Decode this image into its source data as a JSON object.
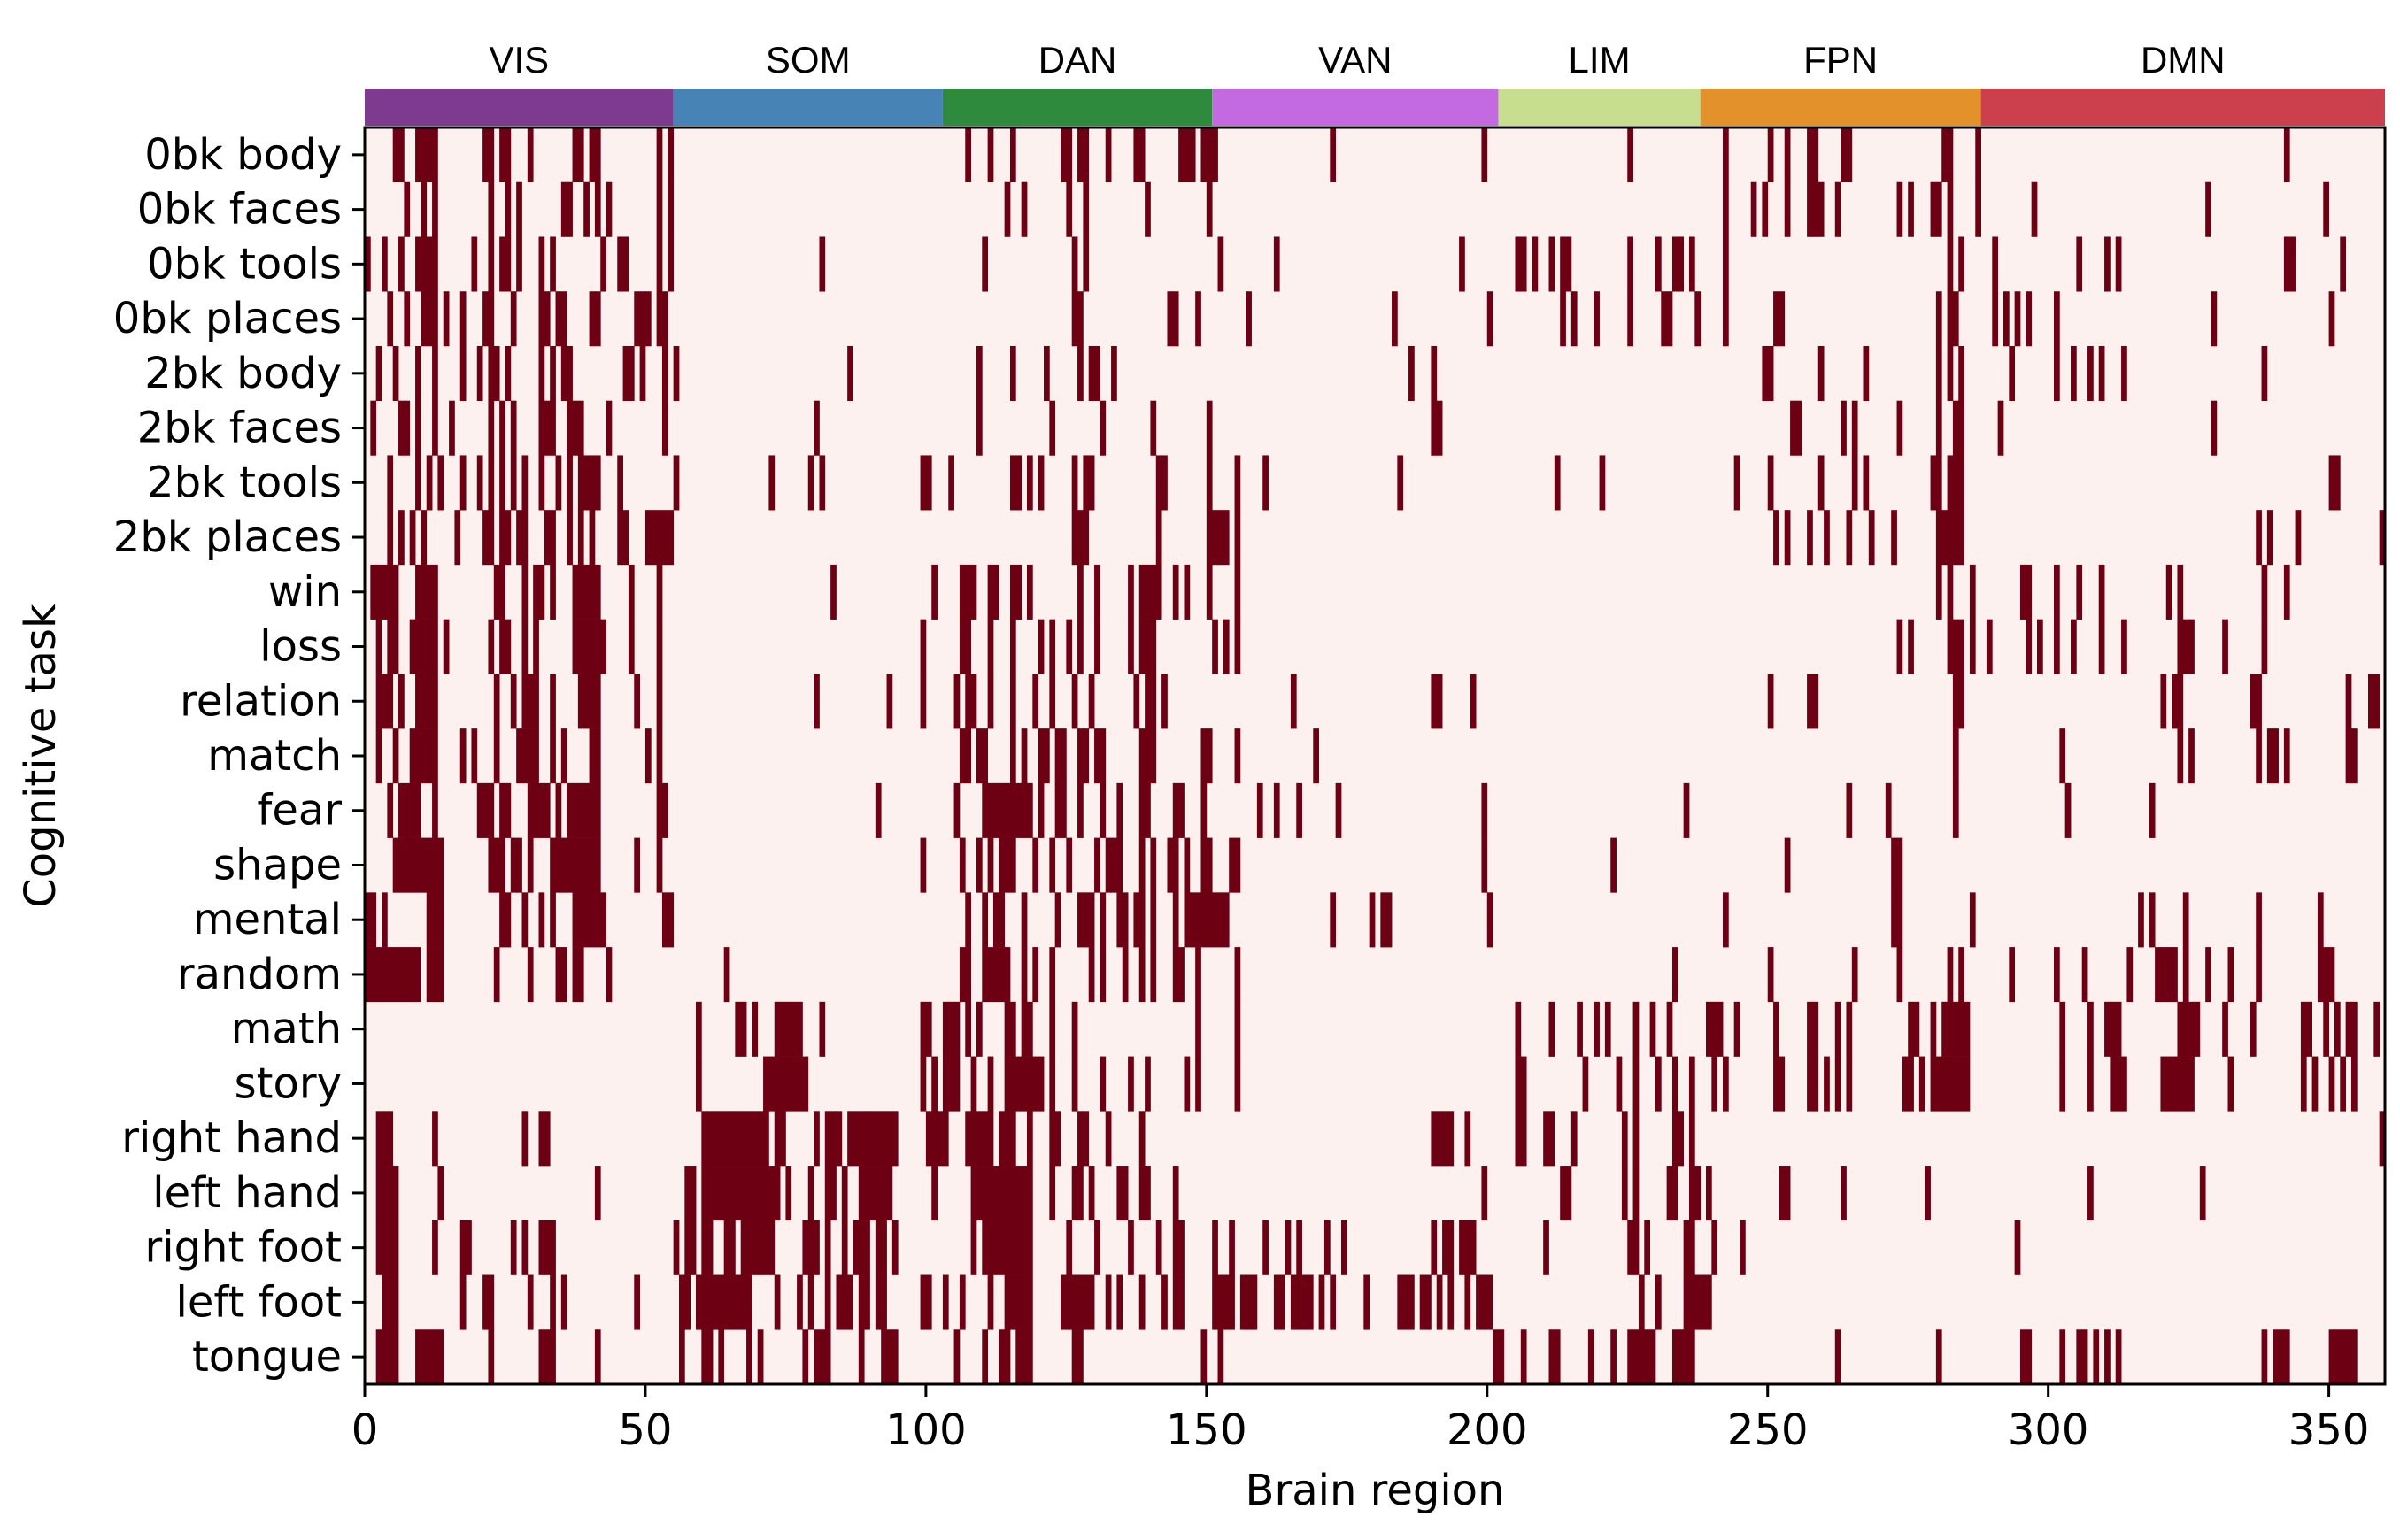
{
  "chart_data": {
    "type": "heatmap",
    "title": "",
    "xlabel": "Brain region",
    "ylabel": "Cognitive task",
    "xlim": [
      0,
      360
    ],
    "xticks": [
      0,
      50,
      100,
      150,
      200,
      250,
      300,
      350
    ],
    "grid": false,
    "legend": "none",
    "colors": {
      "background": "#fcf1ee",
      "active": "#6e0014"
    },
    "tasks": [
      "0bk body",
      "0bk faces",
      "0bk tools",
      "0bk places",
      "2bk body",
      "2bk faces",
      "2bk tools",
      "2bk places",
      "win",
      "loss",
      "relation",
      "match",
      "fear",
      "shape",
      "mental",
      "random",
      "math",
      "story",
      "right hand",
      "left hand",
      "right foot",
      "left foot",
      "tongue"
    ],
    "networks": [
      {
        "name": "VIS",
        "start": 0,
        "end": 55,
        "color": "#7e3a8e"
      },
      {
        "name": "SOM",
        "start": 55,
        "end": 103,
        "color": "#4783b5"
      },
      {
        "name": "DAN",
        "start": 103,
        "end": 151,
        "color": "#2e8b3d"
      },
      {
        "name": "VAN",
        "start": 151,
        "end": 202,
        "color": "#c36ae0"
      },
      {
        "name": "LIM",
        "start": 202,
        "end": 238,
        "color": "#c7de8f"
      },
      {
        "name": "FPN",
        "start": 238,
        "end": 288,
        "color": "#e3912a"
      },
      {
        "name": "DMN",
        "start": 288,
        "end": 360,
        "color": "#cc404e"
      }
    ],
    "active_regions": [
      [
        5,
        6,
        9,
        10,
        11,
        12,
        21,
        22,
        24,
        25,
        29,
        37,
        38,
        40,
        41,
        52,
        54,
        107,
        111,
        115,
        124,
        125,
        127,
        128,
        132,
        137,
        138,
        145,
        146,
        147,
        149,
        150,
        151,
        172,
        199,
        225,
        242,
        250,
        253,
        257,
        258,
        263,
        264,
        281,
        282,
        287,
        342
      ],
      [
        7,
        10,
        12,
        22,
        25,
        27,
        35,
        36,
        39,
        41,
        43,
        52,
        54,
        114,
        117,
        125,
        128,
        139,
        150,
        242,
        247,
        249,
        253,
        257,
        258,
        259,
        262,
        273,
        275,
        279,
        280,
        282,
        287,
        297,
        328,
        349
      ],
      [
        0,
        3,
        6,
        9,
        10,
        11,
        12,
        19,
        22,
        24,
        25,
        27,
        31,
        33,
        42,
        45,
        46,
        52,
        54,
        81,
        110,
        126,
        128,
        152,
        162,
        195,
        205,
        206,
        208,
        211,
        213,
        214,
        225,
        230,
        233,
        234,
        236,
        242,
        282,
        284,
        290,
        305,
        310,
        312,
        342,
        343,
        352
      ],
      [
        4,
        7,
        10,
        11,
        12,
        14,
        17,
        21,
        22,
        26,
        31,
        32,
        34,
        35,
        40,
        41,
        48,
        49,
        50,
        52,
        53,
        126,
        127,
        143,
        144,
        148,
        157,
        183,
        200,
        213,
        215,
        219,
        225,
        231,
        232,
        237,
        242,
        251,
        252,
        280,
        282,
        283,
        290,
        292,
        294,
        296,
        301,
        329,
        350
      ],
      [
        2,
        5,
        9,
        12,
        17,
        20,
        22,
        23,
        25,
        31,
        33,
        35,
        36,
        46,
        47,
        49,
        53,
        55,
        86,
        109,
        115,
        121,
        127,
        129,
        130,
        133,
        186,
        190,
        249,
        250,
        259,
        267,
        280,
        282,
        284,
        293,
        301,
        304,
        307,
        309,
        313,
        338
      ],
      [
        1,
        6,
        7,
        9,
        12,
        15,
        22,
        24,
        26,
        31,
        32,
        33,
        36,
        37,
        38,
        43,
        53,
        80,
        109,
        122,
        131,
        140,
        150,
        190,
        191,
        254,
        255,
        263,
        265,
        273,
        280,
        283,
        284,
        291,
        329
      ],
      [
        4,
        9,
        11,
        13,
        17,
        20,
        22,
        24,
        26,
        28,
        31,
        34,
        36,
        38,
        39,
        40,
        41,
        45,
        55,
        72,
        79,
        81,
        99,
        100,
        104,
        115,
        116,
        118,
        120,
        126,
        128,
        129,
        141,
        142,
        150,
        155,
        160,
        184,
        212,
        220,
        244,
        250,
        259,
        265,
        267,
        279,
        280,
        282,
        283,
        284,
        350,
        351
      ],
      [
        4,
        6,
        8,
        10,
        16,
        21,
        22,
        24,
        25,
        27,
        28,
        32,
        33,
        36,
        38,
        40,
        45,
        46,
        50,
        51,
        52,
        53,
        54,
        126,
        127,
        128,
        141,
        150,
        151,
        152,
        153,
        155,
        251,
        253,
        257,
        260,
        264,
        268,
        272,
        280,
        281,
        282,
        283,
        284,
        337,
        339,
        344,
        359
      ],
      [
        1,
        2,
        3,
        4,
        5,
        9,
        10,
        11,
        12,
        23,
        24,
        28,
        30,
        31,
        33,
        37,
        38,
        39,
        40,
        41,
        47,
        52,
        83,
        101,
        106,
        107,
        108,
        111,
        112,
        115,
        116,
        118,
        127,
        130,
        136,
        138,
        139,
        140,
        141,
        144,
        146,
        150,
        155,
        280,
        282,
        286,
        295,
        296,
        301,
        305,
        309,
        321,
        323,
        338,
        342
      ],
      [
        2,
        4,
        5,
        8,
        9,
        10,
        11,
        12,
        14,
        22,
        24,
        25,
        28,
        30,
        37,
        38,
        39,
        40,
        41,
        42,
        47,
        52,
        99,
        106,
        107,
        111,
        115,
        120,
        122,
        125,
        127,
        130,
        136,
        138,
        139,
        140,
        151,
        153,
        155,
        273,
        275,
        282,
        283,
        284,
        286,
        289,
        296,
        298,
        301,
        304,
        309,
        313,
        323,
        324,
        325,
        331,
        338
      ],
      [
        2,
        3,
        4,
        6,
        9,
        10,
        11,
        12,
        23,
        26,
        28,
        29,
        30,
        33,
        38,
        39,
        40,
        41,
        48,
        52,
        80,
        93,
        99,
        105,
        107,
        108,
        111,
        115,
        119,
        122,
        126,
        129,
        137,
        139,
        140,
        142,
        165,
        190,
        191,
        197,
        250,
        257,
        258,
        283,
        284,
        320,
        322,
        323,
        336,
        337,
        353,
        357,
        358
      ],
      [
        2,
        5,
        8,
        9,
        10,
        11,
        12,
        17,
        19,
        23,
        27,
        28,
        29,
        30,
        33,
        35,
        40,
        41,
        50,
        52,
        106,
        107,
        109,
        110,
        115,
        117,
        120,
        121,
        123,
        124,
        127,
        128,
        130,
        131,
        138,
        139,
        140,
        149,
        150,
        155,
        169,
        283,
        302,
        323,
        325,
        337,
        339,
        340,
        342,
        353,
        354
      ],
      [
        4,
        6,
        7,
        8,
        9,
        12,
        20,
        21,
        22,
        24,
        25,
        29,
        30,
        31,
        32,
        34,
        36,
        37,
        38,
        39,
        40,
        41,
        52,
        53,
        91,
        105,
        110,
        111,
        112,
        113,
        114,
        115,
        116,
        117,
        118,
        120,
        123,
        124,
        127,
        131,
        134,
        138,
        139,
        144,
        145,
        149,
        159,
        162,
        166,
        173,
        199,
        235,
        264,
        271,
        283,
        303,
        318
      ],
      [
        5,
        6,
        7,
        8,
        9,
        10,
        11,
        12,
        13,
        22,
        23,
        24,
        26,
        27,
        29,
        33,
        34,
        35,
        36,
        37,
        38,
        39,
        40,
        41,
        48,
        52,
        99,
        106,
        109,
        111,
        113,
        114,
        115,
        119,
        122,
        125,
        130,
        132,
        133,
        134,
        138,
        140,
        143,
        144,
        146,
        149,
        150,
        154,
        155,
        199,
        222,
        253,
        272,
        273
      ],
      [
        0,
        1,
        3,
        11,
        12,
        13,
        24,
        25,
        28,
        31,
        33,
        37,
        38,
        39,
        40,
        41,
        42,
        53,
        54,
        107,
        110,
        112,
        113,
        117,
        123,
        127,
        128,
        129,
        131,
        134,
        135,
        137,
        138,
        140,
        144,
        146,
        147,
        148,
        149,
        150,
        151,
        152,
        153,
        172,
        179,
        181,
        182,
        200,
        242,
        272,
        273,
        286,
        316,
        318,
        324,
        337,
        348
      ],
      [
        0,
        1,
        2,
        3,
        4,
        5,
        6,
        7,
        8,
        9,
        11,
        12,
        13,
        23,
        29,
        34,
        35,
        37,
        38,
        43,
        64,
        106,
        107,
        110,
        111,
        112,
        113,
        114,
        117,
        119,
        122,
        129,
        131,
        135,
        138,
        140,
        144,
        145,
        148,
        155,
        233,
        250,
        265,
        273,
        282,
        284,
        293,
        301,
        306,
        314,
        319,
        320,
        321,
        322,
        324,
        328,
        332,
        337,
        348,
        349,
        350
      ],
      [
        59,
        66,
        67,
        69,
        73,
        74,
        75,
        76,
        77,
        81,
        99,
        100,
        103,
        104,
        105,
        107,
        109,
        114,
        115,
        117,
        118,
        122,
        126,
        148,
        155,
        205,
        211,
        216,
        219,
        221,
        226,
        229,
        232,
        239,
        240,
        241,
        244,
        251,
        257,
        258,
        262,
        264,
        275,
        276,
        279,
        281,
        282,
        283,
        284,
        285,
        302,
        307,
        310,
        311,
        312,
        323,
        324,
        325,
        326,
        331,
        336,
        345,
        346,
        349,
        351,
        353,
        354,
        358
      ],
      [
        59,
        71,
        72,
        73,
        74,
        75,
        76,
        77,
        78,
        99,
        101,
        103,
        104,
        105,
        108,
        111,
        114,
        115,
        116,
        117,
        118,
        119,
        120,
        122,
        126,
        131,
        136,
        139,
        146,
        148,
        155,
        205,
        206,
        217,
        223,
        226,
        230,
        233,
        236,
        240,
        242,
        251,
        252,
        257,
        258,
        260,
        262,
        264,
        274,
        275,
        277,
        279,
        280,
        281,
        282,
        283,
        284,
        285,
        302,
        307,
        311,
        312,
        313,
        320,
        321,
        322,
        323,
        324,
        325,
        332,
        345,
        347,
        350,
        352,
        354
      ],
      [
        2,
        3,
        4,
        12,
        28,
        31,
        32,
        60,
        61,
        62,
        63,
        64,
        65,
        66,
        67,
        68,
        69,
        70,
        71,
        73,
        74,
        80,
        82,
        83,
        84,
        86,
        87,
        88,
        89,
        90,
        91,
        92,
        93,
        94,
        100,
        101,
        102,
        103,
        107,
        108,
        109,
        110,
        111,
        113,
        114,
        115,
        118,
        122,
        123,
        127,
        128,
        132,
        138,
        190,
        191,
        192,
        193,
        196,
        205,
        206,
        210,
        211,
        215,
        224,
        226,
        233,
        234,
        236,
        359
      ],
      [
        2,
        3,
        4,
        5,
        13,
        41,
        57,
        58,
        60,
        61,
        62,
        63,
        64,
        65,
        66,
        67,
        68,
        69,
        70,
        71,
        72,
        73,
        75,
        79,
        82,
        83,
        85,
        88,
        89,
        90,
        91,
        92,
        93,
        101,
        108,
        109,
        110,
        111,
        112,
        113,
        114,
        115,
        116,
        117,
        118,
        122,
        126,
        127,
        129,
        134,
        135,
        138,
        139,
        144,
        199,
        213,
        214,
        224,
        226,
        232,
        233,
        236,
        237,
        239,
        252,
        253,
        263,
        278,
        307,
        327
      ],
      [
        2,
        3,
        4,
        5,
        12,
        17,
        18,
        26,
        28,
        31,
        32,
        33,
        55,
        57,
        58,
        60,
        61,
        64,
        65,
        67,
        68,
        69,
        70,
        71,
        72,
        78,
        79,
        80,
        82,
        85,
        87,
        88,
        89,
        91,
        92,
        94,
        108,
        110,
        111,
        112,
        113,
        114,
        115,
        116,
        117,
        118,
        125,
        130,
        136,
        141,
        144,
        145,
        151,
        154,
        160,
        164,
        166,
        171,
        174,
        190,
        192,
        193,
        195,
        196,
        197,
        210,
        225,
        226,
        228,
        235,
        236,
        240,
        245,
        294
      ],
      [
        3,
        4,
        5,
        17,
        21,
        22,
        29,
        33,
        35,
        48,
        56,
        57,
        59,
        60,
        61,
        62,
        63,
        64,
        65,
        66,
        67,
        68,
        73,
        77,
        79,
        82,
        84,
        85,
        86,
        88,
        89,
        91,
        92,
        99,
        100,
        103,
        106,
        111,
        114,
        115,
        116,
        117,
        118,
        124,
        125,
        126,
        127,
        128,
        129,
        132,
        134,
        138,
        142,
        144,
        145,
        151,
        152,
        153,
        154,
        156,
        157,
        158,
        162,
        163,
        165,
        166,
        167,
        168,
        170,
        172,
        178,
        184,
        185,
        186,
        188,
        189,
        191,
        193,
        196,
        198,
        199,
        200,
        227,
        230,
        235,
        236,
        237,
        238,
        239
      ],
      [
        2,
        3,
        4,
        5,
        9,
        10,
        11,
        12,
        13,
        22,
        31,
        32,
        33,
        41,
        56,
        60,
        61,
        63,
        68,
        70,
        78,
        80,
        81,
        82,
        88,
        92,
        93,
        94,
        105,
        110,
        113,
        114,
        116,
        117,
        118,
        126,
        127,
        149,
        152,
        201,
        202,
        206,
        211,
        212,
        218,
        222,
        225,
        226,
        227,
        228,
        229,
        233,
        234,
        235,
        236,
        262,
        280,
        295,
        296,
        302,
        305,
        306,
        308,
        310,
        312,
        338,
        340,
        341,
        342,
        350,
        351,
        352,
        353,
        354
      ]
    ]
  }
}
